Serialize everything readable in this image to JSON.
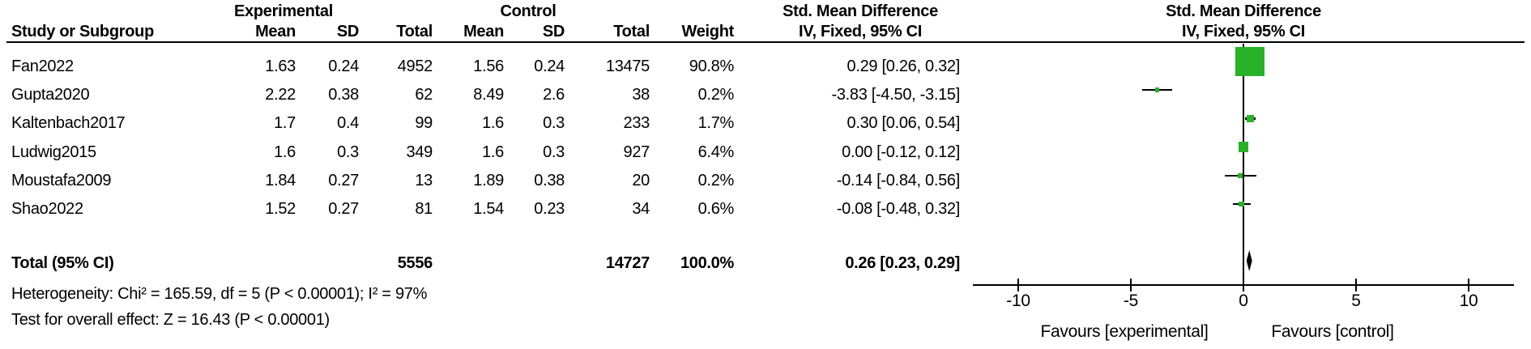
{
  "table": {
    "group_headers": {
      "experimental": "Experimental",
      "control": "Control",
      "smd_table": "Std. Mean Difference",
      "smd_plot": "Std. Mean Difference"
    },
    "col_headers": {
      "study": "Study or Subgroup",
      "mean_e": "Mean",
      "sd_e": "SD",
      "total_e": "Total",
      "mean_c": "Mean",
      "sd_c": "SD",
      "total_c": "Total",
      "weight": "Weight",
      "ci_table": "IV, Fixed, 95% CI",
      "ci_plot": "IV, Fixed, 95% CI"
    },
    "rows": [
      {
        "study": "Fan2022",
        "mean_e": "1.63",
        "sd_e": "0.24",
        "total_e": "4952",
        "mean_c": "1.56",
        "sd_c": "0.24",
        "total_c": "13475",
        "weight": "90.8%",
        "ci": "0.29 [0.26, 0.32]"
      },
      {
        "study": "Gupta2020",
        "mean_e": "2.22",
        "sd_e": "0.38",
        "total_e": "62",
        "mean_c": "8.49",
        "sd_c": "2.6",
        "total_c": "38",
        "weight": "0.2%",
        "ci": "-3.83 [-4.50, -3.15]"
      },
      {
        "study": "Kaltenbach2017",
        "mean_e": "1.7",
        "sd_e": "0.4",
        "total_e": "99",
        "mean_c": "1.6",
        "sd_c": "0.3",
        "total_c": "233",
        "weight": "1.7%",
        "ci": "0.30 [0.06, 0.54]"
      },
      {
        "study": "Ludwig2015",
        "mean_e": "1.6",
        "sd_e": "0.3",
        "total_e": "349",
        "mean_c": "1.6",
        "sd_c": "0.3",
        "total_c": "927",
        "weight": "6.4%",
        "ci": "0.00 [-0.12, 0.12]"
      },
      {
        "study": "Moustafa2009",
        "mean_e": "1.84",
        "sd_e": "0.27",
        "total_e": "13",
        "mean_c": "1.89",
        "sd_c": "0.38",
        "total_c": "20",
        "weight": "0.2%",
        "ci": "-0.14 [-0.84, 0.56]"
      },
      {
        "study": "Shao2022",
        "mean_e": "1.52",
        "sd_e": "0.27",
        "total_e": "81",
        "mean_c": "1.54",
        "sd_c": "0.23",
        "total_c": "34",
        "weight": "0.6%",
        "ci": "-0.08 [-0.48, 0.32]"
      }
    ],
    "total_row": {
      "label": "Total (95% CI)",
      "total_e": "5556",
      "total_c": "14727",
      "weight": "100.0%",
      "ci": "0.26 [0.23, 0.29]"
    },
    "footnotes": {
      "heterogeneity": "Heterogeneity: Chi² = 165.59, df = 5 (P < 0.00001); I² = 97%",
      "overall_effect": "Test for overall effect: Z = 16.43 (P < 0.00001)"
    }
  },
  "chart_data": {
    "type": "scatter",
    "subtype": "forest-plot",
    "title": "Std. Mean Difference, IV, Fixed, 95% CI",
    "x_axis": {
      "ticks": [
        -10,
        -5,
        0,
        5,
        10
      ],
      "range": [
        -12,
        12
      ],
      "grid": false
    },
    "x_labels": {
      "left": "Favours [experimental]",
      "right": "Favours [control]"
    },
    "marker_color": "#27b227",
    "line_color": "#000000",
    "studies": [
      {
        "name": "Fan2022",
        "smd": 0.29,
        "ci_low": 0.26,
        "ci_high": 0.32,
        "weight_pct": 90.8
      },
      {
        "name": "Gupta2020",
        "smd": -3.83,
        "ci_low": -4.5,
        "ci_high": -3.15,
        "weight_pct": 0.2
      },
      {
        "name": "Kaltenbach2017",
        "smd": 0.3,
        "ci_low": 0.06,
        "ci_high": 0.54,
        "weight_pct": 1.7
      },
      {
        "name": "Ludwig2015",
        "smd": 0.0,
        "ci_low": -0.12,
        "ci_high": 0.12,
        "weight_pct": 6.4
      },
      {
        "name": "Moustafa2009",
        "smd": -0.14,
        "ci_low": -0.84,
        "ci_high": 0.56,
        "weight_pct": 0.2
      },
      {
        "name": "Shao2022",
        "smd": -0.08,
        "ci_low": -0.48,
        "ci_high": 0.32,
        "weight_pct": 0.6
      }
    ],
    "total": {
      "smd": 0.26,
      "ci_low": 0.23,
      "ci_high": 0.29
    }
  }
}
